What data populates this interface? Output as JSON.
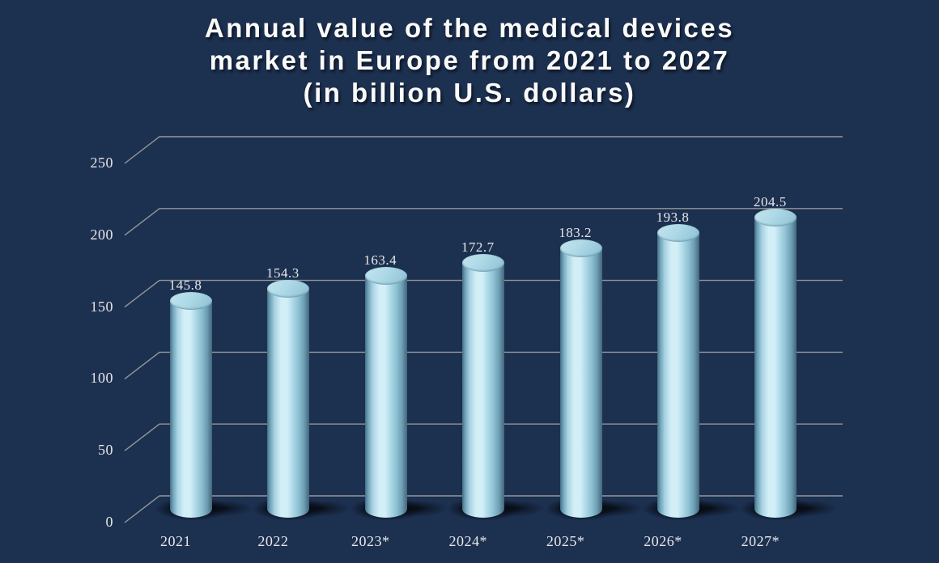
{
  "title": {
    "lines": [
      "Annual value of the medical devices",
      "market in Europe from 2021 to 2027",
      "(in billion U.S. dollars)"
    ]
  },
  "chart_data": {
    "type": "bar",
    "style": "3d-cylinder",
    "title": "Annual value of the medical devices market in Europe from 2021 to 2027 (in billion U.S. dollars)",
    "categories": [
      "2021",
      "2022",
      "2023*",
      "2024*",
      "2025*",
      "2026*",
      "2027*"
    ],
    "values": [
      145.8,
      154.3,
      163.4,
      172.7,
      183.2,
      193.8,
      204.5
    ],
    "data_labels": [
      "145.8",
      "154.3",
      "163.4",
      "172.7",
      "183.2",
      "193.8",
      "204.5"
    ],
    "xlabel": "",
    "ylabel": "",
    "yticks": [
      0,
      50,
      100,
      150,
      200,
      250
    ],
    "ylim": [
      0,
      250
    ],
    "grid": true,
    "legend": false
  },
  "colors": {
    "background": "#1c3050",
    "gridline": "#95979b",
    "label": "#e8e8e8",
    "title_text": "#fafafa",
    "cylinder_edge": "#456e84",
    "cylinder_mid": "#a8d3e2",
    "cylinder_highlight": "#d2eef7",
    "cylinder_top_light": "#c2e4ef",
    "cylinder_top_dark": "#8cc0d3",
    "shadow": "#000000"
  }
}
